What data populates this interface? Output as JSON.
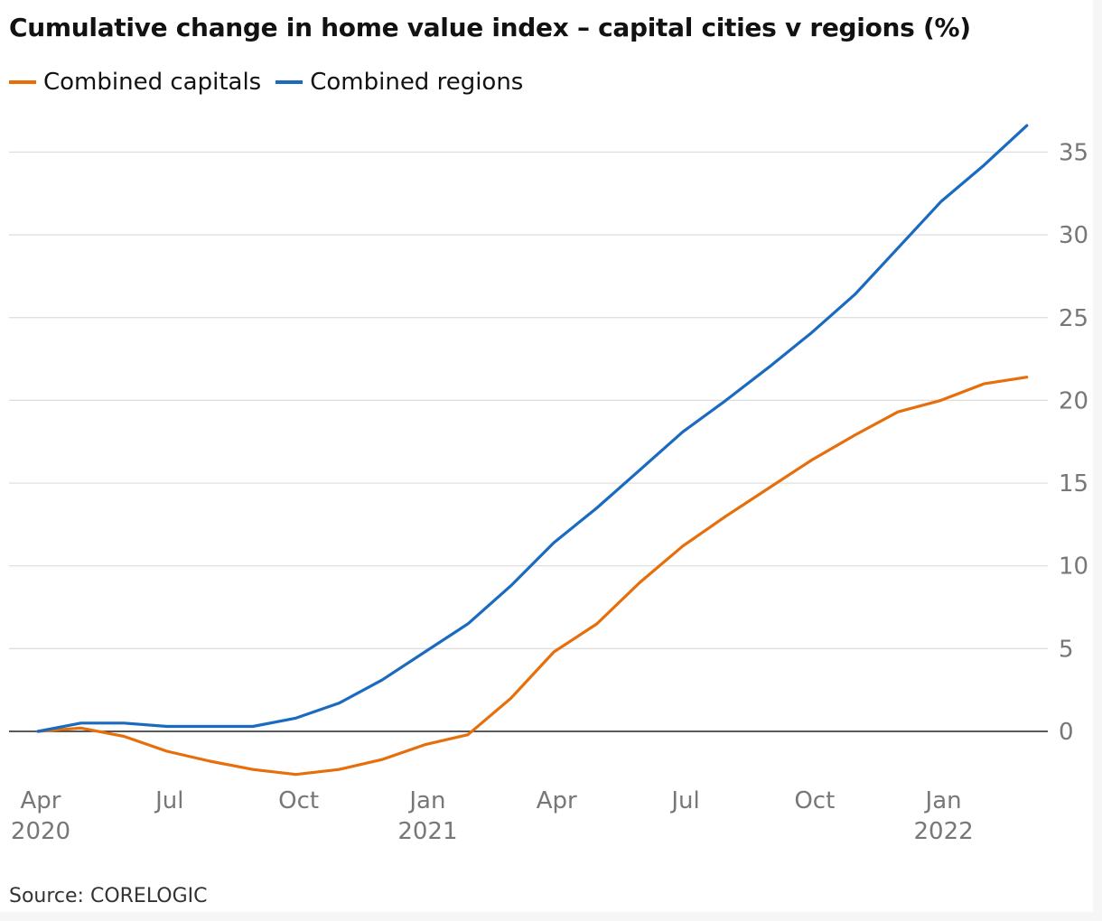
{
  "chart_data": {
    "type": "line",
    "title": "Cumulative change in home value index – capital cities v regions (%)",
    "xlabel": "",
    "ylabel": "",
    "source": "Source: CORELOGIC",
    "x": [
      "2020-04",
      "2020-05",
      "2020-06",
      "2020-07",
      "2020-08",
      "2020-09",
      "2020-10",
      "2020-11",
      "2020-12",
      "2021-01",
      "2021-02",
      "2021-03",
      "2021-04",
      "2021-05",
      "2021-06",
      "2021-07",
      "2021-08",
      "2021-09",
      "2021-10",
      "2021-11",
      "2021-12",
      "2022-01",
      "2022-02",
      "2022-03"
    ],
    "series": [
      {
        "name": "Combined capitals",
        "color": "#e66e0b",
        "values": [
          0,
          0.2,
          -0.3,
          -1.2,
          -1.8,
          -2.3,
          -2.6,
          -2.3,
          -1.7,
          -0.8,
          -0.2,
          2.0,
          4.8,
          6.5,
          9.0,
          11.2,
          13.0,
          14.7,
          16.4,
          17.9,
          19.3,
          20.0,
          21.0,
          21.4
        ]
      },
      {
        "name": "Combined regions",
        "color": "#1a6bc0",
        "values": [
          0,
          0.5,
          0.5,
          0.3,
          0.3,
          0.3,
          0.8,
          1.7,
          3.1,
          4.8,
          6.5,
          8.8,
          11.4,
          13.5,
          15.8,
          18.1,
          20.0,
          22.0,
          24.1,
          26.4,
          29.2,
          32.0,
          34.2,
          36.6
        ]
      }
    ],
    "ylim": [
      -2.6,
      37
    ],
    "yticks": [
      0,
      5,
      10,
      15,
      20,
      25,
      30,
      35
    ],
    "ytick_labels": [
      "0",
      "5",
      "10",
      "15",
      "20",
      "25",
      "30",
      "35"
    ],
    "xticks": [
      {
        "x": "2020-04",
        "line1": "Apr",
        "line2": "2020"
      },
      {
        "x": "2020-07",
        "line1": "Jul",
        "line2": ""
      },
      {
        "x": "2020-10",
        "line1": "Oct",
        "line2": ""
      },
      {
        "x": "2021-01",
        "line1": "Jan",
        "line2": "2021"
      },
      {
        "x": "2021-04",
        "line1": "Apr",
        "line2": ""
      },
      {
        "x": "2021-07",
        "line1": "Jul",
        "line2": ""
      },
      {
        "x": "2021-10",
        "line1": "Oct",
        "line2": ""
      },
      {
        "x": "2022-01",
        "line1": "Jan",
        "line2": "2022"
      }
    ],
    "grid": true,
    "legend_position": "top-left",
    "y_axis_side": "right"
  }
}
